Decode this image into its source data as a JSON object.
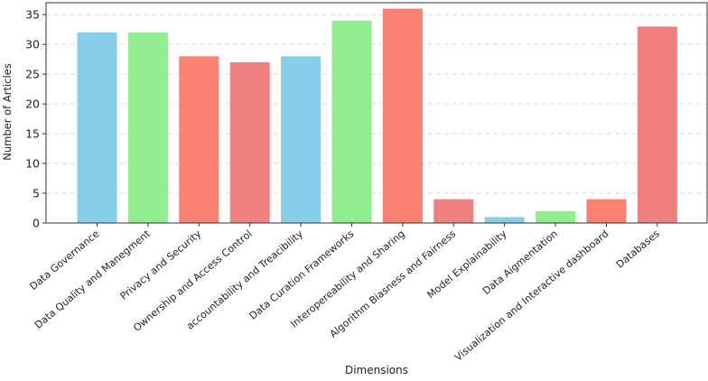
{
  "chart_data": {
    "type": "bar",
    "xlabel": "Dimensions",
    "ylabel": "Number of Articles",
    "ylim": [
      0,
      37
    ],
    "yticks": [
      0,
      5,
      10,
      15,
      20,
      25,
      30,
      35
    ],
    "grid": "horizontal dashed",
    "categories": [
      "Data Governance",
      "Data Quality and Manegment",
      "Privacy and Security",
      "Ownership and Access Control",
      "accountability and Treacibility",
      "Data Curation Frameworks",
      "Interopereability and Sharing",
      "Algorithm Biasness and Fairness",
      "Model Explainability",
      "Data Aigmentation",
      "Visualization and Interactive dashboard",
      "Databases"
    ],
    "values": [
      32,
      32,
      28,
      27,
      28,
      34,
      36,
      4,
      1,
      2,
      4,
      33
    ],
    "colors": [
      "#87ceeb",
      "#90ee90",
      "#fa8072",
      "#f08080",
      "#87ceeb",
      "#90ee90",
      "#fa8072",
      "#f08080",
      "#87ceeb",
      "#90ee90",
      "#fa8072",
      "#f08080"
    ]
  }
}
